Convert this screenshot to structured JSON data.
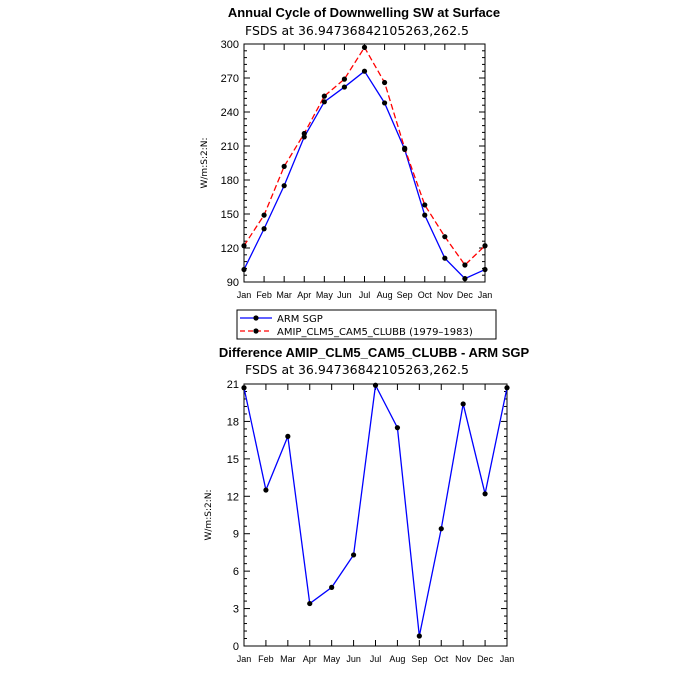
{
  "chart_data": [
    {
      "type": "line",
      "title": "Annual Cycle of Downwelling SW at Surface",
      "subtitle": "FSDS at 36.94736842105263,262.5",
      "ylabel": "W/m:S:2:N:",
      "xlabel": "",
      "categories": [
        "Jan",
        "Feb",
        "Mar",
        "Apr",
        "May",
        "Jun",
        "Jul",
        "Aug",
        "Sep",
        "Oct",
        "Nov",
        "Dec",
        "Jan"
      ],
      "ylim": [
        90,
        300
      ],
      "yticks": [
        90,
        120,
        150,
        180,
        210,
        240,
        270,
        300
      ],
      "series": [
        {
          "name": "ARM SGP",
          "color": "#0000ff",
          "dash": "solid",
          "values": [
            101,
            137,
            175,
            218,
            249,
            262,
            276,
            248,
            207,
            149,
            111,
            93,
            101
          ]
        },
        {
          "name": "AMIP_CLM5_CAM5_CLUBB (1979-1983)",
          "color": "#ff0000",
          "dash": "dashed",
          "values": [
            122,
            149,
            192,
            221,
            254,
            269,
            297,
            266,
            208,
            158,
            130,
            105,
            122
          ]
        }
      ],
      "legend": {
        "position": "bottom-right",
        "entries": [
          "ARM SGP",
          "AMIP_CLM5_CAM5_CLUBB (1979–1983)"
        ]
      }
    },
    {
      "type": "line",
      "title": "Difference AMIP_CLM5_CAM5_CLUBB - ARM SGP",
      "subtitle": "FSDS at 36.94736842105263,262.5",
      "ylabel": "W/m:S:2:N:",
      "xlabel": "",
      "categories": [
        "Jan",
        "Feb",
        "Mar",
        "Apr",
        "May",
        "Jun",
        "Jul",
        "Aug",
        "Sep",
        "Oct",
        "Nov",
        "Dec",
        "Jan"
      ],
      "ylim": [
        0,
        21
      ],
      "yticks": [
        0,
        3,
        6,
        9,
        12,
        15,
        18,
        21
      ],
      "series": [
        {
          "name": "",
          "color": "#0000ff",
          "dash": "solid",
          "values": [
            20.7,
            12.5,
            16.8,
            3.4,
            4.7,
            7.3,
            20.9,
            17.5,
            0.8,
            9.4,
            19.4,
            12.2,
            20.7
          ]
        }
      ]
    }
  ]
}
